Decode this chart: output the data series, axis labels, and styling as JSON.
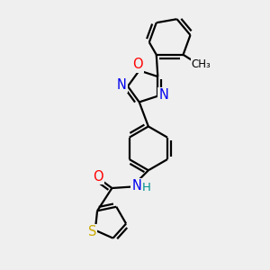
{
  "background_color": "#efefef",
  "bond_color": "#000000",
  "atom_colors": {
    "N": "#0000ee",
    "O_oxadiazole": "#ff0000",
    "O_carbonyl": "#ff0000",
    "S": "#ccaa00",
    "H": "#009090",
    "C": "#000000"
  },
  "line_width": 1.6,
  "font_size": 10.5,
  "figsize": [
    3.0,
    3.0
  ],
  "dpi": 100,
  "xlim": [
    0,
    10
  ],
  "ylim": [
    0,
    10
  ]
}
